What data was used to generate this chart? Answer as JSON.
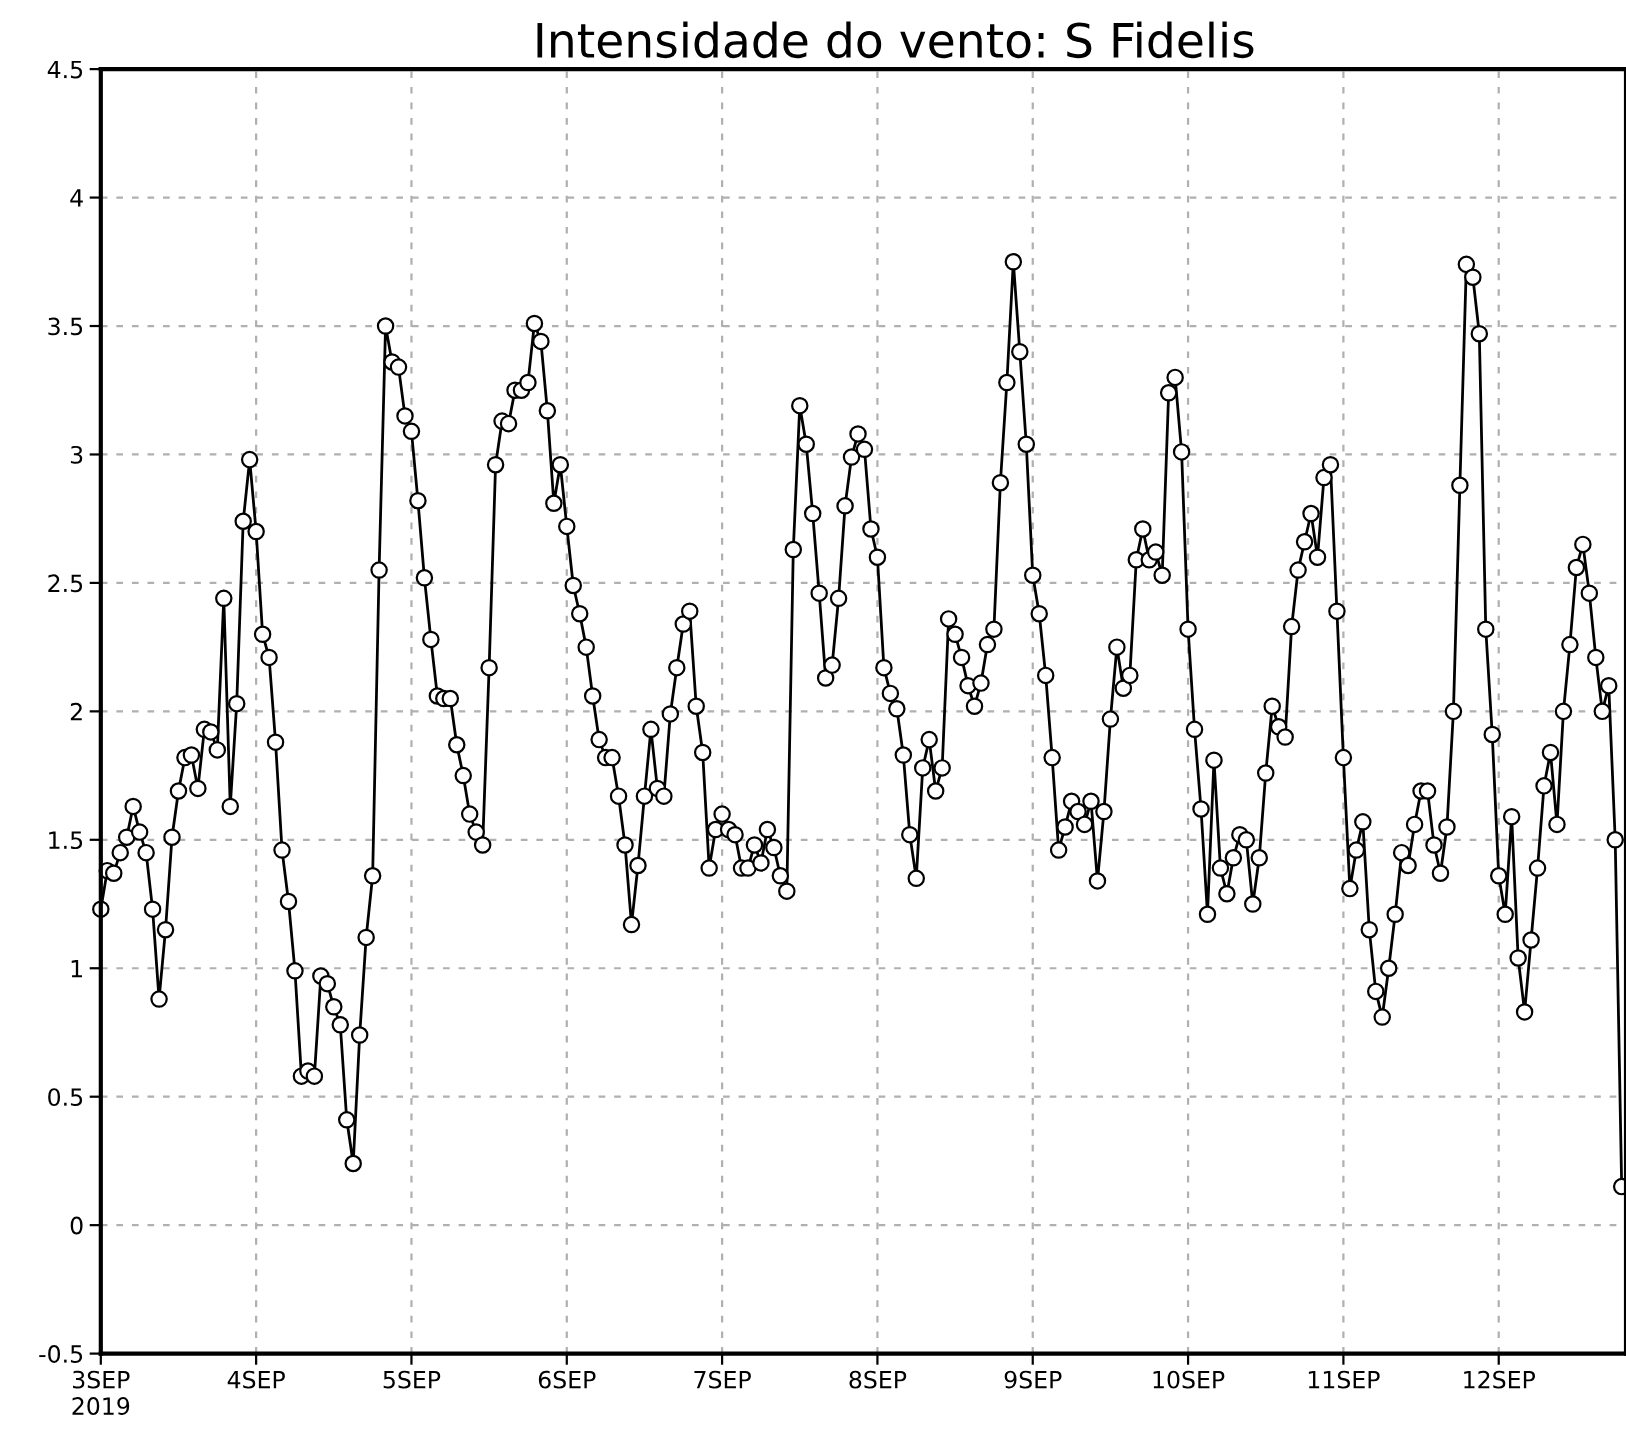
{
  "chart_data": {
    "type": "line",
    "title": "Intensidade do vento: S Fidelis",
    "x": [
      "2019-09-03T00:00",
      "2019-09-03T01:00",
      "2019-09-03T02:00",
      "2019-09-03T03:00",
      "2019-09-03T04:00",
      "2019-09-03T05:00",
      "2019-09-03T06:00",
      "2019-09-03T07:00",
      "2019-09-03T08:00",
      "2019-09-03T09:00",
      "2019-09-03T10:00",
      "2019-09-03T11:00",
      "2019-09-03T12:00",
      "2019-09-03T13:00",
      "2019-09-03T14:00",
      "2019-09-03T15:00",
      "2019-09-03T16:00",
      "2019-09-03T17:00",
      "2019-09-03T18:00",
      "2019-09-03T19:00",
      "2019-09-03T20:00",
      "2019-09-03T21:00",
      "2019-09-03T22:00",
      "2019-09-03T23:00",
      "2019-09-04T00:00",
      "2019-09-04T01:00",
      "2019-09-04T02:00",
      "2019-09-04T03:00",
      "2019-09-04T04:00",
      "2019-09-04T05:00",
      "2019-09-04T06:00",
      "2019-09-04T07:00",
      "2019-09-04T08:00",
      "2019-09-04T09:00",
      "2019-09-04T10:00",
      "2019-09-04T11:00",
      "2019-09-04T12:00",
      "2019-09-04T13:00",
      "2019-09-04T14:00",
      "2019-09-04T15:00",
      "2019-09-04T16:00",
      "2019-09-04T17:00",
      "2019-09-04T18:00",
      "2019-09-04T19:00",
      "2019-09-04T20:00",
      "2019-09-04T21:00",
      "2019-09-04T22:00",
      "2019-09-04T23:00",
      "2019-09-05T00:00",
      "2019-09-05T01:00",
      "2019-09-05T02:00",
      "2019-09-05T03:00",
      "2019-09-05T04:00",
      "2019-09-05T05:00",
      "2019-09-05T06:00",
      "2019-09-05T07:00",
      "2019-09-05T08:00",
      "2019-09-05T09:00",
      "2019-09-05T10:00",
      "2019-09-05T11:00",
      "2019-09-05T12:00",
      "2019-09-05T13:00",
      "2019-09-05T14:00",
      "2019-09-05T15:00",
      "2019-09-05T16:00",
      "2019-09-05T17:00",
      "2019-09-05T18:00",
      "2019-09-05T19:00",
      "2019-09-05T20:00",
      "2019-09-05T21:00",
      "2019-09-05T22:00",
      "2019-09-05T23:00",
      "2019-09-06T00:00",
      "2019-09-06T01:00",
      "2019-09-06T02:00",
      "2019-09-06T03:00",
      "2019-09-06T04:00",
      "2019-09-06T05:00",
      "2019-09-06T06:00",
      "2019-09-06T07:00",
      "2019-09-06T08:00",
      "2019-09-06T09:00",
      "2019-09-06T10:00",
      "2019-09-06T11:00",
      "2019-09-06T12:00",
      "2019-09-06T13:00",
      "2019-09-06T14:00",
      "2019-09-06T15:00",
      "2019-09-06T16:00",
      "2019-09-06T17:00",
      "2019-09-06T18:00",
      "2019-09-06T19:00",
      "2019-09-06T20:00",
      "2019-09-06T21:00",
      "2019-09-06T22:00",
      "2019-09-06T23:00",
      "2019-09-07T00:00",
      "2019-09-07T01:00",
      "2019-09-07T02:00",
      "2019-09-07T03:00",
      "2019-09-07T04:00",
      "2019-09-07T05:00",
      "2019-09-07T06:00",
      "2019-09-07T07:00",
      "2019-09-07T08:00",
      "2019-09-07T09:00",
      "2019-09-07T10:00",
      "2019-09-07T11:00",
      "2019-09-07T12:00",
      "2019-09-07T13:00",
      "2019-09-07T14:00",
      "2019-09-07T15:00",
      "2019-09-07T16:00",
      "2019-09-07T17:00",
      "2019-09-07T18:00",
      "2019-09-07T19:00",
      "2019-09-07T20:00",
      "2019-09-07T21:00",
      "2019-09-07T22:00",
      "2019-09-07T23:00",
      "2019-09-08T00:00",
      "2019-09-08T01:00",
      "2019-09-08T02:00",
      "2019-09-08T03:00",
      "2019-09-08T04:00",
      "2019-09-08T05:00",
      "2019-09-08T06:00",
      "2019-09-08T07:00",
      "2019-09-08T08:00",
      "2019-09-08T09:00",
      "2019-09-08T10:00",
      "2019-09-08T11:00",
      "2019-09-08T12:00",
      "2019-09-08T13:00",
      "2019-09-08T14:00",
      "2019-09-08T15:00",
      "2019-09-08T16:00",
      "2019-09-08T17:00",
      "2019-09-08T18:00",
      "2019-09-08T19:00",
      "2019-09-08T20:00",
      "2019-09-08T21:00",
      "2019-09-08T22:00",
      "2019-09-08T23:00",
      "2019-09-09T00:00",
      "2019-09-09T01:00",
      "2019-09-09T02:00",
      "2019-09-09T03:00",
      "2019-09-09T04:00",
      "2019-09-09T05:00",
      "2019-09-09T06:00",
      "2019-09-09T07:00",
      "2019-09-09T08:00",
      "2019-09-09T09:00",
      "2019-09-09T10:00",
      "2019-09-09T11:00",
      "2019-09-09T12:00",
      "2019-09-09T13:00",
      "2019-09-09T14:00",
      "2019-09-09T15:00",
      "2019-09-09T16:00",
      "2019-09-09T17:00",
      "2019-09-09T18:00",
      "2019-09-09T19:00",
      "2019-09-09T20:00",
      "2019-09-09T21:00",
      "2019-09-09T22:00",
      "2019-09-09T23:00",
      "2019-09-10T00:00",
      "2019-09-10T01:00",
      "2019-09-10T02:00",
      "2019-09-10T03:00",
      "2019-09-10T04:00",
      "2019-09-10T05:00",
      "2019-09-10T06:00",
      "2019-09-10T07:00",
      "2019-09-10T08:00",
      "2019-09-10T09:00",
      "2019-09-10T10:00",
      "2019-09-10T11:00",
      "2019-09-10T12:00",
      "2019-09-10T13:00",
      "2019-09-10T14:00",
      "2019-09-10T15:00",
      "2019-09-10T16:00",
      "2019-09-10T17:00",
      "2019-09-10T18:00",
      "2019-09-10T19:00",
      "2019-09-10T20:00",
      "2019-09-10T21:00",
      "2019-09-10T22:00",
      "2019-09-10T23:00",
      "2019-09-11T00:00",
      "2019-09-11T01:00",
      "2019-09-11T02:00",
      "2019-09-11T03:00",
      "2019-09-11T04:00",
      "2019-09-11T05:00",
      "2019-09-11T06:00",
      "2019-09-11T07:00",
      "2019-09-11T08:00",
      "2019-09-11T09:00",
      "2019-09-11T10:00",
      "2019-09-11T11:00",
      "2019-09-11T12:00",
      "2019-09-11T13:00",
      "2019-09-11T14:00",
      "2019-09-11T15:00",
      "2019-09-11T16:00",
      "2019-09-11T17:00",
      "2019-09-11T18:00",
      "2019-09-11T19:00",
      "2019-09-11T20:00",
      "2019-09-11T21:00",
      "2019-09-11T22:00",
      "2019-09-11T23:00",
      "2019-09-12T00:00",
      "2019-09-12T01:00",
      "2019-09-12T02:00",
      "2019-09-12T03:00",
      "2019-09-12T04:00",
      "2019-09-12T05:00",
      "2019-09-12T06:00",
      "2019-09-12T07:00",
      "2019-09-12T08:00",
      "2019-09-12T09:00",
      "2019-09-12T10:00",
      "2019-09-12T11:00",
      "2019-09-12T12:00",
      "2019-09-12T13:00",
      "2019-09-12T14:00",
      "2019-09-12T15:00",
      "2019-09-12T16:00",
      "2019-09-12T17:00",
      "2019-09-12T18:00",
      "2019-09-12T19:00"
    ],
    "series": [
      {
        "color": "#000000",
        "values": [
          1.23,
          1.38,
          1.37,
          1.45,
          1.51,
          1.63,
          1.53,
          1.45,
          1.23,
          0.88,
          1.15,
          1.51,
          1.69,
          1.82,
          1.83,
          1.7,
          1.93,
          1.92,
          1.85,
          2.44,
          1.63,
          2.03,
          2.74,
          2.98,
          2.7,
          2.3,
          2.21,
          1.88,
          1.46,
          1.26,
          0.99,
          0.58,
          0.6,
          0.58,
          0.97,
          0.94,
          0.85,
          0.78,
          0.41,
          0.24,
          0.74,
          1.12,
          1.36,
          2.55,
          3.5,
          3.36,
          3.34,
          3.15,
          3.09,
          2.82,
          2.52,
          2.28,
          2.06,
          2.05,
          2.05,
          1.87,
          1.75,
          1.6,
          1.53,
          1.48,
          2.17,
          2.96,
          3.13,
          3.12,
          3.25,
          3.25,
          3.28,
          3.51,
          3.44,
          3.17,
          2.81,
          2.96,
          2.72,
          2.49,
          2.38,
          2.25,
          2.06,
          1.89,
          1.82,
          1.82,
          1.67,
          1.48,
          1.17,
          1.4,
          1.67,
          1.93,
          1.7,
          1.67,
          1.99,
          2.17,
          2.34,
          2.39,
          2.02,
          1.84,
          1.39,
          1.54,
          1.6,
          1.54,
          1.52,
          1.39,
          1.39,
          1.48,
          1.41,
          1.54,
          1.47,
          1.36,
          1.3,
          2.63,
          3.19,
          3.04,
          2.77,
          2.46,
          2.13,
          2.18,
          2.44,
          2.8,
          2.99,
          3.08,
          3.02,
          2.71,
          2.6,
          2.17,
          2.07,
          2.01,
          1.83,
          1.52,
          1.35,
          1.78,
          1.89,
          1.69,
          1.78,
          2.36,
          2.3,
          2.21,
          2.1,
          2.02,
          2.11,
          2.26,
          2.32,
          2.89,
          3.28,
          3.75,
          3.4,
          3.04,
          2.53,
          2.38,
          2.14,
          1.82,
          1.46,
          1.55,
          1.65,
          1.61,
          1.56,
          1.65,
          1.34,
          1.61,
          1.97,
          2.25,
          2.09,
          2.14,
          2.59,
          2.71,
          2.59,
          2.62,
          2.53,
          3.24,
          3.3,
          3.01,
          2.32,
          1.93,
          1.62,
          1.21,
          1.81,
          1.39,
          1.29,
          1.43,
          1.52,
          1.5,
          1.25,
          1.43,
          1.76,
          2.02,
          1.94,
          1.9,
          2.33,
          2.55,
          2.66,
          2.77,
          2.6,
          2.91,
          2.96,
          2.39,
          1.82,
          1.31,
          1.46,
          1.57,
          1.15,
          0.91,
          0.81,
          1.0,
          1.21,
          1.45,
          1.4,
          1.56,
          1.69,
          1.69,
          1.48,
          1.37,
          1.55,
          2.0,
          2.88,
          3.74,
          3.69,
          3.47,
          2.32,
          1.91,
          1.36,
          1.21,
          1.59,
          1.04,
          0.83,
          1.11,
          1.39,
          1.71,
          1.84,
          1.56,
          2.0,
          2.26,
          2.56,
          2.65,
          2.46,
          2.21,
          2.0,
          2.1,
          1.5,
          0.15
        ]
      }
    ],
    "xlim": [
      "2019-09-03T00:00",
      "2019-09-12T19:40"
    ],
    "xticks": [
      {
        "value": "2019-09-03",
        "label": "3SEP\n2019"
      },
      {
        "value": "2019-09-04",
        "label": "4SEP"
      },
      {
        "value": "2019-09-05",
        "label": "5SEP"
      },
      {
        "value": "2019-09-06",
        "label": "6SEP"
      },
      {
        "value": "2019-09-07",
        "label": "7SEP"
      },
      {
        "value": "2019-09-08",
        "label": "8SEP"
      },
      {
        "value": "2019-09-09",
        "label": "9SEP"
      },
      {
        "value": "2019-09-10",
        "label": "10SEP"
      },
      {
        "value": "2019-09-11",
        "label": "11SEP"
      },
      {
        "value": "2019-09-12",
        "label": "12SEP"
      }
    ],
    "ylim": [
      -0.5,
      4.5
    ],
    "yticks": [
      -0.5,
      0,
      0.5,
      1,
      1.5,
      2,
      2.5,
      3,
      3.5,
      4,
      4.5
    ],
    "grid": true,
    "marker": "circle",
    "line_style": "solid",
    "legend": false
  }
}
